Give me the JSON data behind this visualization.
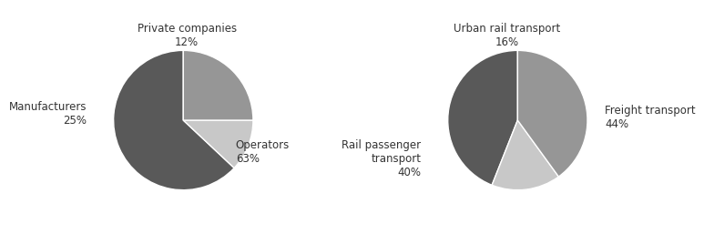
{
  "chart1": {
    "values": [
      63,
      12,
      25
    ],
    "colors": [
      "#595959",
      "#c8c8c8",
      "#969696"
    ],
    "startangle": 90,
    "labels": [
      "Operators\n63%",
      "Private companies\n12%",
      "Manufacturers\n25%"
    ],
    "label_coords": [
      [
        0.75,
        -0.45,
        "left",
        "center"
      ],
      [
        0.05,
        1.22,
        "center",
        "center"
      ],
      [
        -1.38,
        0.1,
        "right",
        "center"
      ]
    ]
  },
  "chart2": {
    "values": [
      44,
      16,
      40
    ],
    "colors": [
      "#595959",
      "#c8c8c8",
      "#969696"
    ],
    "startangle": 90,
    "labels": [
      "Freight transport\n44%",
      "Urban rail transport\n16%",
      "Rail passenger\ntransport\n40%"
    ],
    "label_coords": [
      [
        1.25,
        0.05,
        "left",
        "center"
      ],
      [
        -0.15,
        1.22,
        "center",
        "center"
      ],
      [
        -1.38,
        -0.55,
        "right",
        "center"
      ]
    ]
  },
  "background_color": "#ffffff",
  "fontsize": 8.5,
  "edge_color": "#ffffff",
  "edge_width": 1.0
}
